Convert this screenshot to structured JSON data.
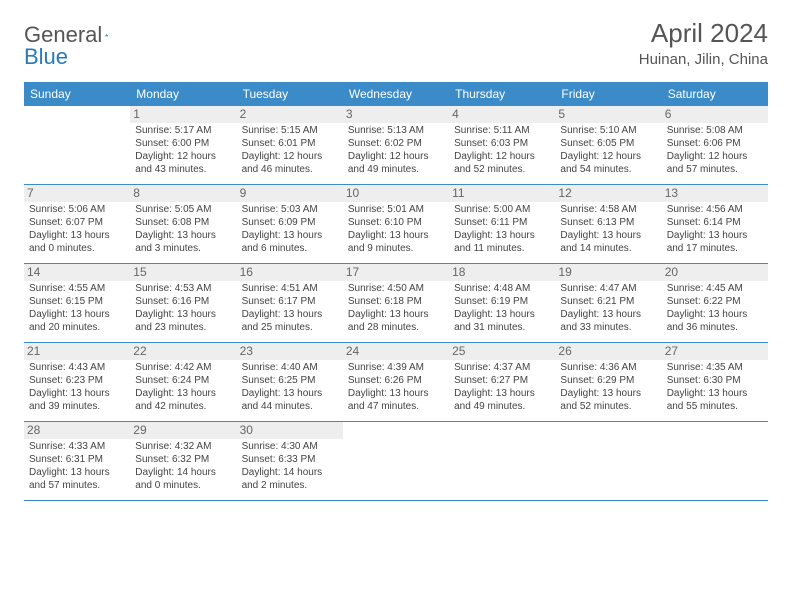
{
  "colors": {
    "header_bg": "#3b8bc9",
    "header_fg": "#ffffff",
    "daynum_bg": "#eeeeee",
    "text": "#444444",
    "border": "#3b8bc9",
    "logo_gray": "#555555",
    "logo_blue": "#2a7ab9"
  },
  "typography": {
    "month_title_pt": 26,
    "location_pt": 15,
    "dow_pt": 12,
    "daynum_pt": 12,
    "body_pt": 10,
    "logo_pt": 22
  },
  "logo": {
    "general": "General",
    "blue": "Blue"
  },
  "title": "April 2024",
  "location": "Huinan, Jilin, China",
  "dow": [
    "Sunday",
    "Monday",
    "Tuesday",
    "Wednesday",
    "Thursday",
    "Friday",
    "Saturday"
  ],
  "weeks": [
    [
      {
        "empty": true
      },
      {
        "n": "1",
        "sr": "Sunrise: 5:17 AM",
        "ss": "Sunset: 6:00 PM",
        "d1": "Daylight: 12 hours",
        "d2": "and 43 minutes."
      },
      {
        "n": "2",
        "sr": "Sunrise: 5:15 AM",
        "ss": "Sunset: 6:01 PM",
        "d1": "Daylight: 12 hours",
        "d2": "and 46 minutes."
      },
      {
        "n": "3",
        "sr": "Sunrise: 5:13 AM",
        "ss": "Sunset: 6:02 PM",
        "d1": "Daylight: 12 hours",
        "d2": "and 49 minutes."
      },
      {
        "n": "4",
        "sr": "Sunrise: 5:11 AM",
        "ss": "Sunset: 6:03 PM",
        "d1": "Daylight: 12 hours",
        "d2": "and 52 minutes."
      },
      {
        "n": "5",
        "sr": "Sunrise: 5:10 AM",
        "ss": "Sunset: 6:05 PM",
        "d1": "Daylight: 12 hours",
        "d2": "and 54 minutes."
      },
      {
        "n": "6",
        "sr": "Sunrise: 5:08 AM",
        "ss": "Sunset: 6:06 PM",
        "d1": "Daylight: 12 hours",
        "d2": "and 57 minutes."
      }
    ],
    [
      {
        "n": "7",
        "sr": "Sunrise: 5:06 AM",
        "ss": "Sunset: 6:07 PM",
        "d1": "Daylight: 13 hours",
        "d2": "and 0 minutes."
      },
      {
        "n": "8",
        "sr": "Sunrise: 5:05 AM",
        "ss": "Sunset: 6:08 PM",
        "d1": "Daylight: 13 hours",
        "d2": "and 3 minutes."
      },
      {
        "n": "9",
        "sr": "Sunrise: 5:03 AM",
        "ss": "Sunset: 6:09 PM",
        "d1": "Daylight: 13 hours",
        "d2": "and 6 minutes."
      },
      {
        "n": "10",
        "sr": "Sunrise: 5:01 AM",
        "ss": "Sunset: 6:10 PM",
        "d1": "Daylight: 13 hours",
        "d2": "and 9 minutes."
      },
      {
        "n": "11",
        "sr": "Sunrise: 5:00 AM",
        "ss": "Sunset: 6:11 PM",
        "d1": "Daylight: 13 hours",
        "d2": "and 11 minutes."
      },
      {
        "n": "12",
        "sr": "Sunrise: 4:58 AM",
        "ss": "Sunset: 6:13 PM",
        "d1": "Daylight: 13 hours",
        "d2": "and 14 minutes."
      },
      {
        "n": "13",
        "sr": "Sunrise: 4:56 AM",
        "ss": "Sunset: 6:14 PM",
        "d1": "Daylight: 13 hours",
        "d2": "and 17 minutes."
      }
    ],
    [
      {
        "n": "14",
        "sr": "Sunrise: 4:55 AM",
        "ss": "Sunset: 6:15 PM",
        "d1": "Daylight: 13 hours",
        "d2": "and 20 minutes."
      },
      {
        "n": "15",
        "sr": "Sunrise: 4:53 AM",
        "ss": "Sunset: 6:16 PM",
        "d1": "Daylight: 13 hours",
        "d2": "and 23 minutes."
      },
      {
        "n": "16",
        "sr": "Sunrise: 4:51 AM",
        "ss": "Sunset: 6:17 PM",
        "d1": "Daylight: 13 hours",
        "d2": "and 25 minutes."
      },
      {
        "n": "17",
        "sr": "Sunrise: 4:50 AM",
        "ss": "Sunset: 6:18 PM",
        "d1": "Daylight: 13 hours",
        "d2": "and 28 minutes."
      },
      {
        "n": "18",
        "sr": "Sunrise: 4:48 AM",
        "ss": "Sunset: 6:19 PM",
        "d1": "Daylight: 13 hours",
        "d2": "and 31 minutes."
      },
      {
        "n": "19",
        "sr": "Sunrise: 4:47 AM",
        "ss": "Sunset: 6:21 PM",
        "d1": "Daylight: 13 hours",
        "d2": "and 33 minutes."
      },
      {
        "n": "20",
        "sr": "Sunrise: 4:45 AM",
        "ss": "Sunset: 6:22 PM",
        "d1": "Daylight: 13 hours",
        "d2": "and 36 minutes."
      }
    ],
    [
      {
        "n": "21",
        "sr": "Sunrise: 4:43 AM",
        "ss": "Sunset: 6:23 PM",
        "d1": "Daylight: 13 hours",
        "d2": "and 39 minutes."
      },
      {
        "n": "22",
        "sr": "Sunrise: 4:42 AM",
        "ss": "Sunset: 6:24 PM",
        "d1": "Daylight: 13 hours",
        "d2": "and 42 minutes."
      },
      {
        "n": "23",
        "sr": "Sunrise: 4:40 AM",
        "ss": "Sunset: 6:25 PM",
        "d1": "Daylight: 13 hours",
        "d2": "and 44 minutes."
      },
      {
        "n": "24",
        "sr": "Sunrise: 4:39 AM",
        "ss": "Sunset: 6:26 PM",
        "d1": "Daylight: 13 hours",
        "d2": "and 47 minutes."
      },
      {
        "n": "25",
        "sr": "Sunrise: 4:37 AM",
        "ss": "Sunset: 6:27 PM",
        "d1": "Daylight: 13 hours",
        "d2": "and 49 minutes."
      },
      {
        "n": "26",
        "sr": "Sunrise: 4:36 AM",
        "ss": "Sunset: 6:29 PM",
        "d1": "Daylight: 13 hours",
        "d2": "and 52 minutes."
      },
      {
        "n": "27",
        "sr": "Sunrise: 4:35 AM",
        "ss": "Sunset: 6:30 PM",
        "d1": "Daylight: 13 hours",
        "d2": "and 55 minutes."
      }
    ],
    [
      {
        "n": "28",
        "sr": "Sunrise: 4:33 AM",
        "ss": "Sunset: 6:31 PM",
        "d1": "Daylight: 13 hours",
        "d2": "and 57 minutes."
      },
      {
        "n": "29",
        "sr": "Sunrise: 4:32 AM",
        "ss": "Sunset: 6:32 PM",
        "d1": "Daylight: 14 hours",
        "d2": "and 0 minutes."
      },
      {
        "n": "30",
        "sr": "Sunrise: 4:30 AM",
        "ss": "Sunset: 6:33 PM",
        "d1": "Daylight: 14 hours",
        "d2": "and 2 minutes."
      },
      {
        "empty": true
      },
      {
        "empty": true
      },
      {
        "empty": true
      },
      {
        "empty": true
      }
    ]
  ]
}
